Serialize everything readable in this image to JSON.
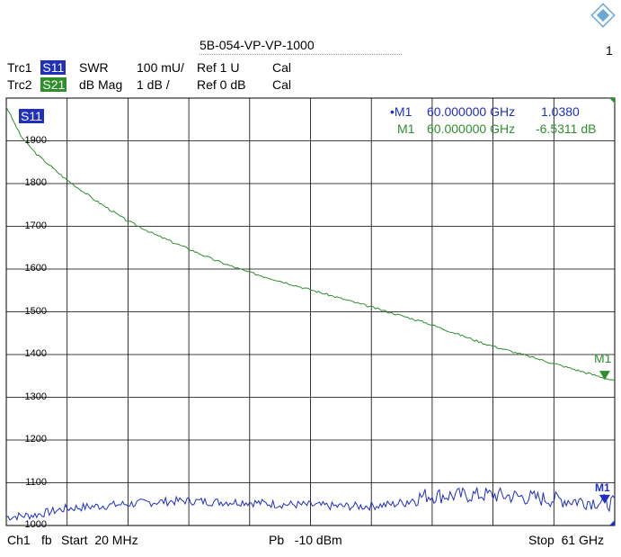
{
  "title": "5B-054-VP-VP-1000",
  "page_number": "1",
  "traces": [
    {
      "name": "Trc1",
      "param": "S11",
      "format": "SWR",
      "scale": "100 mU/",
      "ref": "Ref 1 U",
      "cal": "Cal",
      "color": "#1f2fbf"
    },
    {
      "name": "Trc2",
      "param": "S21",
      "format": "dB Mag",
      "scale": "1 dB /",
      "ref": "Ref 0 dB",
      "cal": "Cal",
      "color": "#2f8f2f"
    }
  ],
  "plot_label": "S11",
  "markers": [
    {
      "prefix": "•",
      "name": "M1",
      "freq": "60.000000 GHz",
      "value": "1.0380",
      "color": "#1f2fbf"
    },
    {
      "prefix": "",
      "name": "M1",
      "freq": "60.000000 GHz",
      "value": "-6.5311 dB",
      "color": "#2f8f2f"
    }
  ],
  "marker_tag_green": "M1",
  "marker_tag_blue": "M1",
  "footer": {
    "channel": "Ch1",
    "fb": "fb",
    "start": "Start  20 MHz",
    "power": "Pb   -10 dBm",
    "stop": "Stop  61 GHz"
  },
  "chart_data": {
    "type": "line",
    "x_unit": "GHz",
    "xlim": [
      0.02,
      61
    ],
    "ylim": [
      1000,
      2000
    ],
    "yticks": [
      "1900",
      "1800",
      "1700",
      "1600",
      "1500",
      "1400",
      "1300",
      "1200",
      "1100",
      "1000"
    ],
    "grid": true,
    "series": [
      {
        "name": "S21",
        "color": "#2f8f2f",
        "x": [
          0.02,
          1.5,
          3,
          6,
          9,
          12,
          15,
          18,
          21,
          24,
          27,
          30,
          33,
          36,
          39,
          42,
          45,
          48,
          51,
          54,
          57,
          60,
          61
        ],
        "y": [
          1980,
          1910,
          1870,
          1810,
          1760,
          1715,
          1680,
          1650,
          1620,
          1595,
          1575,
          1555,
          1535,
          1515,
          1495,
          1475,
          1450,
          1425,
          1405,
          1385,
          1365,
          1345,
          1338
        ]
      },
      {
        "name": "S11",
        "color": "#1f2fbf",
        "x": [
          0.02,
          3,
          6,
          9,
          12,
          15,
          18,
          21,
          24,
          27,
          30,
          33,
          36,
          39,
          42,
          45,
          48,
          51,
          54,
          57,
          60,
          61
        ],
        "y": [
          1020,
          1025,
          1040,
          1045,
          1050,
          1055,
          1058,
          1055,
          1055,
          1050,
          1048,
          1045,
          1045,
          1050,
          1070,
          1070,
          1072,
          1068,
          1062,
          1058,
          1055,
          1050
        ]
      }
    ]
  }
}
